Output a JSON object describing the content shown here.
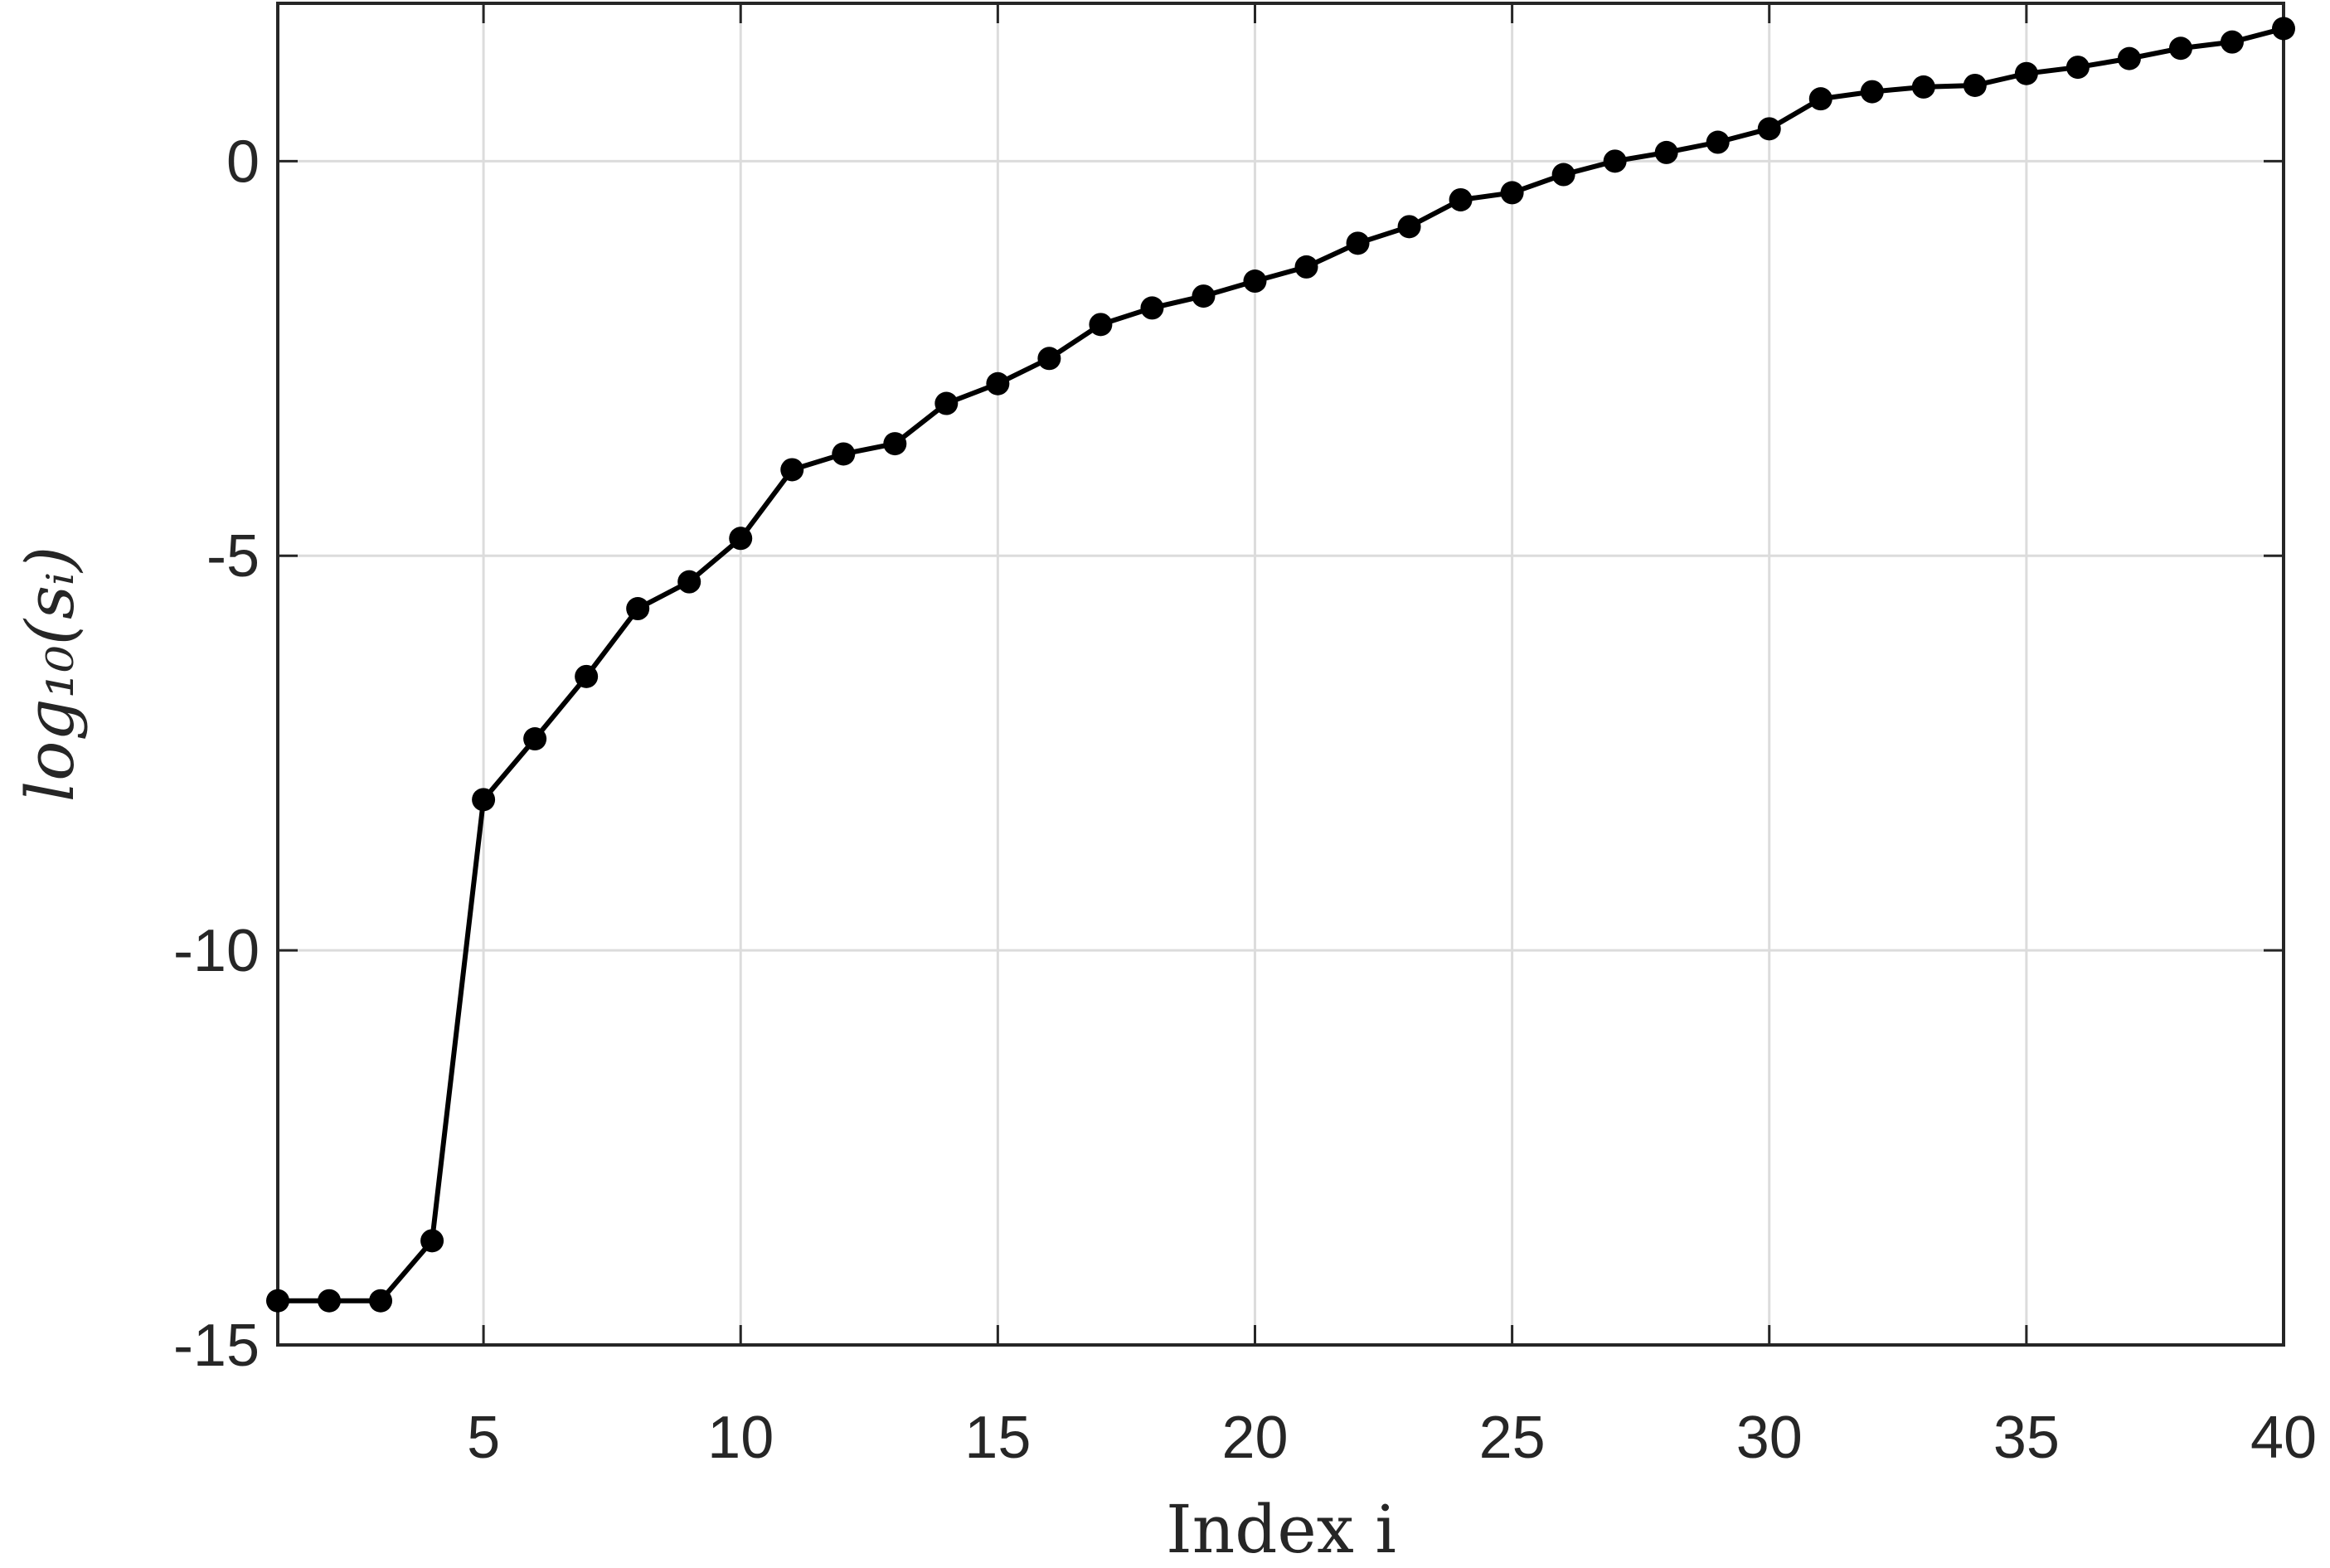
{
  "chart_data": {
    "type": "line",
    "xlabel": "Index i",
    "ylabel": "log₁₀(sᵢ)",
    "x": [
      1,
      2,
      3,
      4,
      5,
      6,
      7,
      8,
      9,
      10,
      11,
      12,
      13,
      14,
      15,
      16,
      17,
      18,
      19,
      20,
      21,
      22,
      23,
      24,
      25,
      26,
      27,
      28,
      29,
      30,
      31,
      32,
      33,
      34,
      35,
      36,
      37,
      38,
      39,
      40
    ],
    "series": [
      {
        "color": "#000000",
        "values": [
          -14.44,
          -14.44,
          -14.44,
          -13.68,
          -8.09,
          -7.32,
          -6.53,
          -5.67,
          -5.33,
          -4.78,
          -3.91,
          -3.71,
          -3.58,
          -3.07,
          -2.82,
          -2.5,
          -2.07,
          -1.86,
          -1.71,
          -1.52,
          -1.34,
          -1.04,
          -0.83,
          -0.49,
          -0.4,
          -0.17,
          0,
          0.11,
          0.24,
          0.41,
          0.79,
          0.88,
          0.94,
          0.96,
          1.11,
          1.19,
          1.3,
          1.43,
          1.51,
          1.68
        ]
      }
    ],
    "xlim": [
      1,
      40
    ],
    "xticks": [
      5,
      10,
      15,
      20,
      25,
      30,
      35,
      40
    ],
    "ylim": [
      -15,
      2
    ],
    "yticks": [
      -15,
      -10,
      -5,
      0
    ],
    "grid": true
  }
}
